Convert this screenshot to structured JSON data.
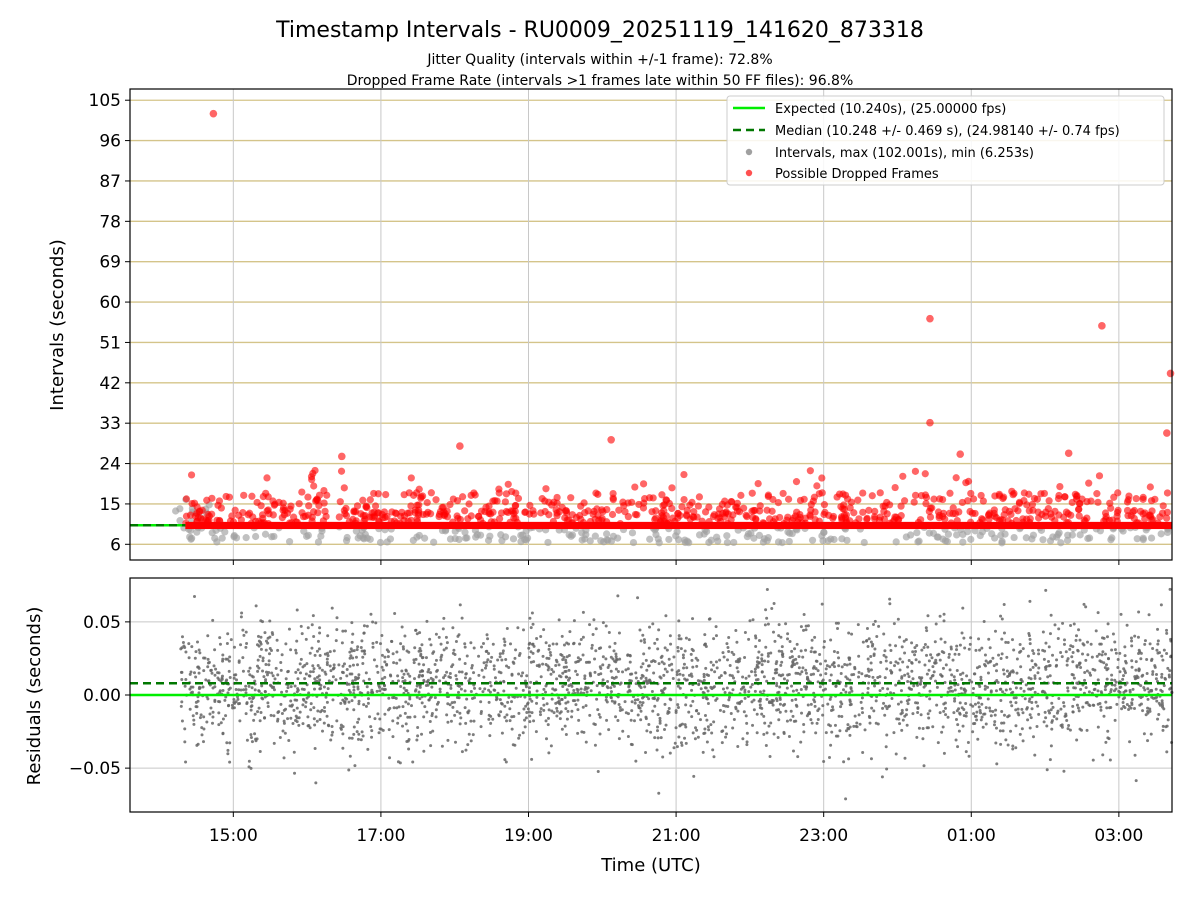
{
  "title": "Timestamp Intervals - RU0009_20251119_141620_873318",
  "subtitle1": "Jitter Quality (intervals within +/-1 frame): 72.8%",
  "subtitle2": "Dropped Frame Rate (intervals >1 frames late within 50 FF files): 96.8%",
  "colors": {
    "expected": "#00ee00",
    "median": "#007700",
    "intervals": "#808080",
    "dropped": "#ff0000",
    "hgrid_top": "#d4c48a",
    "grid": "#c8c8c8"
  },
  "chart_data": [
    {
      "type": "scatter",
      "panel": "top",
      "ylabel": "Intervals (seconds)",
      "xlabel": "",
      "xlim_hours": [
        13.6,
        27.72
      ],
      "ylim": [
        2.5,
        107.5
      ],
      "yticks": [
        6,
        15,
        24,
        33,
        42,
        51,
        60,
        69,
        78,
        87,
        96,
        105
      ],
      "ytick_labels": [
        "6",
        "15",
        "24",
        "33",
        "42",
        "51",
        "60",
        "69",
        "78",
        "87",
        "96",
        "105"
      ],
      "expected_value": 10.24,
      "median_value": 10.248,
      "legend_position": "top-right",
      "legend": [
        {
          "label": "Expected (10.240s), (25.00000 fps)",
          "kind": "solid-line",
          "color": "#00ee00"
        },
        {
          "label": "Median (10.248 +/- 0.469 s), (24.98140 +/- 0.74 fps)",
          "kind": "dashed-line",
          "color": "#007700"
        },
        {
          "label": "Intervals, max (102.001s), min (6.253s)",
          "kind": "dot",
          "color": "#a0a0a0"
        },
        {
          "label": "Possible Dropped Frames",
          "kind": "dot",
          "color": "#ff5050"
        }
      ],
      "series": [
        {
          "name": "Intervals",
          "summary": {
            "max": 102.001,
            "min": 6.253,
            "base": 10.24
          }
        },
        {
          "name": "Possible Dropped Frames",
          "notable_points": [
            {
              "t": 14.73,
              "y": 102.0
            },
            {
              "t": 24.44,
              "y": 56.3
            },
            {
              "t": 26.77,
              "y": 54.7
            },
            {
              "t": 27.7,
              "y": 44.1
            },
            {
              "t": 24.44,
              "y": 33.1
            },
            {
              "t": 27.65,
              "y": 30.8
            },
            {
              "t": 20.12,
              "y": 29.3
            },
            {
              "t": 18.07,
              "y": 27.9
            },
            {
              "t": 26.32,
              "y": 26.3
            },
            {
              "t": 24.85,
              "y": 26.1
            },
            {
              "t": 16.47,
              "y": 25.6
            }
          ]
        }
      ]
    },
    {
      "type": "scatter",
      "panel": "bottom",
      "ylabel": "Residuals (seconds)",
      "xlabel": "Time (UTC)",
      "xlim_hours": [
        13.6,
        27.72
      ],
      "ylim": [
        -0.08,
        0.08
      ],
      "yticks": [
        -0.05,
        0.0,
        0.05
      ],
      "ytick_labels": [
        "−0.05",
        "0.00",
        "0.05"
      ],
      "xticks_hours": [
        15,
        17,
        19,
        21,
        23,
        25,
        27
      ],
      "xtick_labels": [
        "15:00",
        "17:00",
        "19:00",
        "21:00",
        "23:00",
        "01:00",
        "03:00"
      ],
      "expected_residual": 0.0,
      "median_residual": 0.008,
      "series": [
        {
          "name": "Residuals",
          "summary": {
            "typical_spread": 0.03,
            "center": 0.008
          }
        }
      ]
    }
  ]
}
